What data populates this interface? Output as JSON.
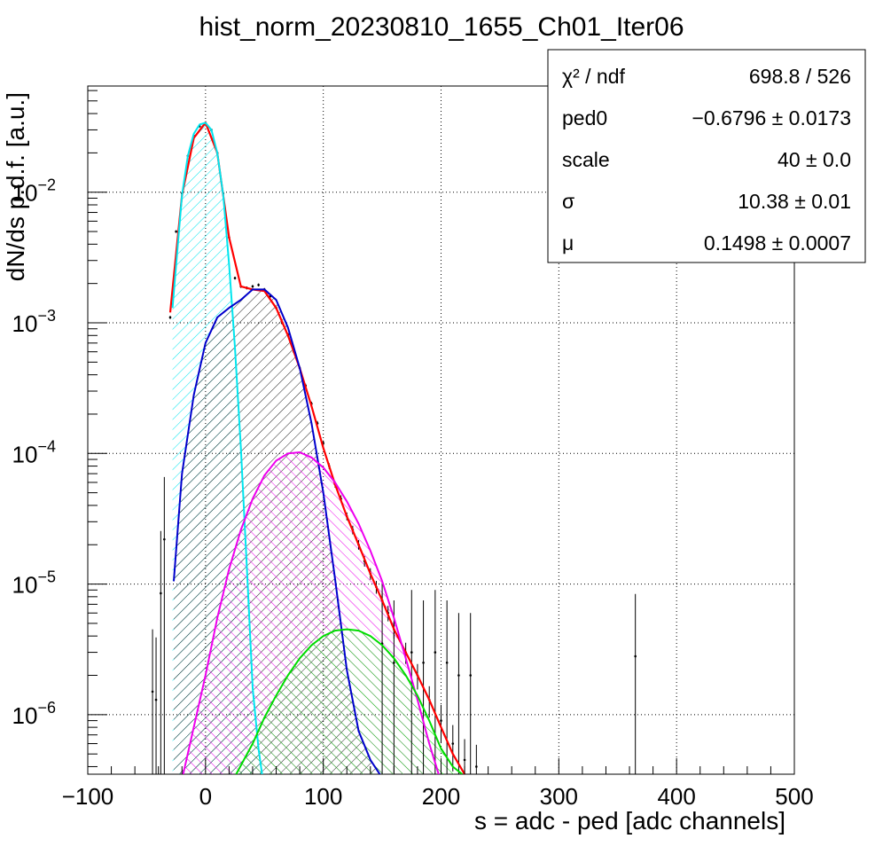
{
  "title": "hist_norm_20230810_1655_Ch01_Iter06",
  "chart_data": {
    "type": "line",
    "title": "hist_norm_20230810_1655_Ch01_Iter06",
    "xlabel": "s = adc - ped [adc channels]",
    "ylabel": "dN/ds p.d.f. [a.u.]",
    "xlim": [
      -100,
      500
    ],
    "ylim": [
      3.5e-07,
      0.065
    ],
    "yscale": "log",
    "grid": true,
    "x_ticks": [
      "−100",
      "0",
      "100",
      "200",
      "300",
      "400",
      "500"
    ],
    "y_ticks": [
      {
        "base": "10",
        "exp": "−2",
        "value": 0.01
      },
      {
        "base": "10",
        "exp": "−3",
        "value": 0.001
      },
      {
        "base": "10",
        "exp": "−4",
        "value": 0.0001
      },
      {
        "base": "10",
        "exp": "−5",
        "value": 1e-05
      },
      {
        "base": "10",
        "exp": "−6",
        "value": 1e-06
      }
    ],
    "stats_box": {
      "position": "top-right",
      "rows": [
        {
          "label": "χ² / ndf",
          "value": "698.8 / 526"
        },
        {
          "label": "ped0",
          "value": "−0.6796 ± 0.0173"
        },
        {
          "label": "scale",
          "value": "40 ± 0.0"
        },
        {
          "label": "σ",
          "value": "10.38 ± 0.01"
        },
        {
          "label": "μ",
          "value": "0.1498 ± 0.0007"
        }
      ]
    },
    "series": [
      {
        "color": "#ff0000",
        "role": "total fit",
        "x": [
          -30,
          -20,
          -10,
          0,
          10,
          20,
          30,
          40,
          50,
          60,
          70,
          80,
          90,
          100,
          110,
          120,
          130,
          140,
          150,
          160,
          170,
          180,
          190,
          200,
          210,
          220
        ],
        "y": [
          0.0012,
          0.0095,
          0.026,
          0.034,
          0.02,
          0.0045,
          0.0019,
          0.0018,
          0.00175,
          0.0013,
          0.0008,
          0.00045,
          0.00023,
          0.00011,
          5.8e-05,
          3.3e-05,
          2e-05,
          1.2e-05,
          7.5e-06,
          4.5e-06,
          3e-06,
          2e-06,
          1.3e-06,
          8e-07,
          5e-07,
          3.5e-07
        ]
      },
      {
        "color": "#00e5ee",
        "role": "pedestal component",
        "x": [
          -28,
          -20,
          -15,
          -10,
          -5,
          0,
          5,
          10,
          15,
          20,
          25,
          30,
          35,
          40,
          45,
          48
        ],
        "y": [
          0.0013,
          0.0095,
          0.019,
          0.028,
          0.033,
          0.034,
          0.03,
          0.02,
          0.0095,
          0.0028,
          0.00065,
          0.00011,
          1.4e-05,
          1.6e-06,
          5.5e-07,
          3.5e-07
        ]
      },
      {
        "color": "#0000cc",
        "role": "1 p.e. component",
        "x": [
          -27,
          -20,
          -10,
          0,
          10,
          20,
          30,
          40,
          50,
          60,
          70,
          80,
          90,
          100,
          110,
          120,
          130,
          140,
          148
        ],
        "y": [
          1.05e-05,
          7e-05,
          0.00028,
          0.0007,
          0.0011,
          0.0013,
          0.0015,
          0.0018,
          0.0018,
          0.0015,
          0.00092,
          0.00045,
          0.00017,
          5e-05,
          1.1e-05,
          2.2e-06,
          7.5e-07,
          4.5e-07,
          3.5e-07
        ]
      },
      {
        "color": "#ee00ee",
        "role": "2 p.e. component",
        "x": [
          -19,
          0,
          10,
          20,
          30,
          40,
          50,
          60,
          70,
          80,
          90,
          100,
          110,
          120,
          130,
          140,
          150,
          160,
          170,
          180,
          190,
          198
        ],
        "y": [
          3.5e-07,
          2e-06,
          5.5e-06,
          1.3e-05,
          2.6e-05,
          4.5e-05,
          6.8e-05,
          8.8e-05,
          0.0001,
          0.000102,
          9.3e-05,
          7.8e-05,
          6e-05,
          4.3e-05,
          2.9e-05,
          1.8e-05,
          1.05e-05,
          5.5e-06,
          2.7e-06,
          1.3e-06,
          6e-07,
          3.5e-07
        ]
      },
      {
        "color": "#00dd00",
        "role": "3 p.e. component",
        "x": [
          26,
          40,
          50,
          60,
          70,
          80,
          90,
          100,
          110,
          120,
          130,
          140,
          150,
          160,
          170,
          180,
          190,
          200,
          210,
          218
        ],
        "y": [
          3.5e-07,
          6e-07,
          9.5e-07,
          1.4e-06,
          2e-06,
          2.7e-06,
          3.4e-06,
          4e-06,
          4.4e-06,
          4.5e-06,
          4.4e-06,
          4e-06,
          3.4e-06,
          2.7e-06,
          2e-06,
          1.4e-06,
          9e-07,
          5.5e-07,
          4e-07,
          3.5e-07
        ]
      },
      {
        "color": "#000000",
        "role": "data histogram",
        "x": [
          -30,
          -25,
          -20,
          -15,
          -10,
          -5,
          0,
          5,
          10,
          15,
          20,
          25,
          30,
          35,
          40,
          45,
          50,
          55,
          60,
          65,
          70,
          75,
          80,
          85,
          90,
          95,
          100,
          105,
          110,
          115,
          120,
          125,
          130,
          135,
          140,
          145,
          150,
          155,
          160,
          170,
          180,
          190,
          200,
          210,
          220,
          230
        ],
        "y": [
          0.0011,
          0.005,
          0.0098,
          0.019,
          0.027,
          0.032,
          0.034,
          0.03,
          0.02,
          0.0098,
          0.0045,
          0.0022,
          0.0019,
          0.00185,
          0.0019,
          0.00195,
          0.0018,
          0.0016,
          0.0013,
          0.001,
          0.00081,
          0.0006,
          0.00045,
          0.00033,
          0.00024,
          0.00017,
          0.00012,
          8e-05,
          5.8e-05,
          4.5e-05,
          3.3e-05,
          2.6e-05,
          2e-05,
          1.5e-05,
          1.2e-05,
          9.5e-06,
          7.5e-06,
          6e-06,
          4.5e-06,
          3e-06,
          2e-06,
          1.3e-06,
          9e-07,
          6e-07,
          4.5e-07,
          4e-07
        ]
      }
    ],
    "outliers": [
      {
        "x": -45,
        "y": 1.5e-06
      },
      {
        "x": -42,
        "y": 1.3e-06
      },
      {
        "x": -38,
        "y": 8.5e-06
      },
      {
        "x": -35,
        "y": 2.2e-05
      },
      {
        "x": 150,
        "y": 3.5e-06
      },
      {
        "x": 160,
        "y": 2.5e-06
      },
      {
        "x": 175,
        "y": 3e-06
      },
      {
        "x": 185,
        "y": 2.5e-06
      },
      {
        "x": 195,
        "y": 3e-06
      },
      {
        "x": 205,
        "y": 2.5e-06
      },
      {
        "x": 215,
        "y": 2e-06
      },
      {
        "x": 225,
        "y": 2e-06
      },
      {
        "x": 365,
        "y": 2.8e-06
      }
    ]
  }
}
